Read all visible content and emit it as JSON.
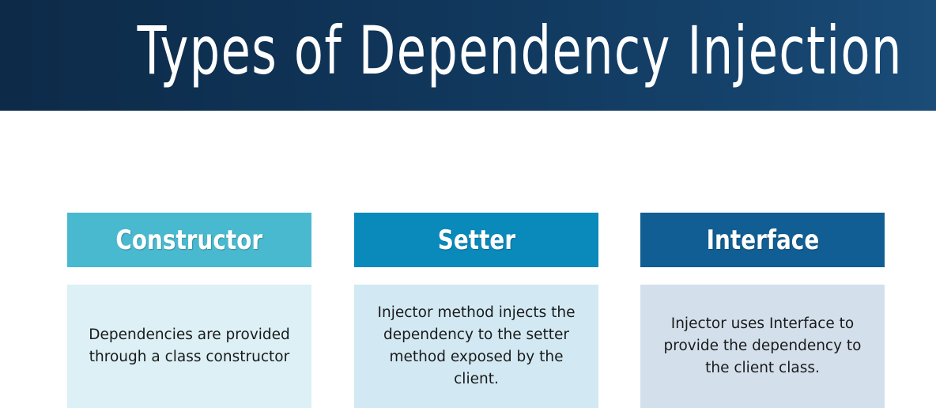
{
  "title": "Types of Dependency Injection",
  "colors": {
    "banner": "#10365a",
    "banner_text": "#ffffff",
    "header_text": "#ffffff",
    "description_text": "#1a1a1a"
  },
  "types": [
    {
      "name": "Constructor",
      "header_color": "#48b9cf",
      "box_color": "#dcf0f5",
      "description": "Dependencies are provided through a class constructor"
    },
    {
      "name": "Setter",
      "header_color": "#0a89bb",
      "box_color": "#d2e9f3",
      "description": "Injector method injects the dependency to the setter method exposed by the client."
    },
    {
      "name": "Interface",
      "header_color": "#105e93",
      "box_color": "#d3e0ec",
      "description": "Injector uses Interface to provide the dependency to the client class."
    }
  ]
}
